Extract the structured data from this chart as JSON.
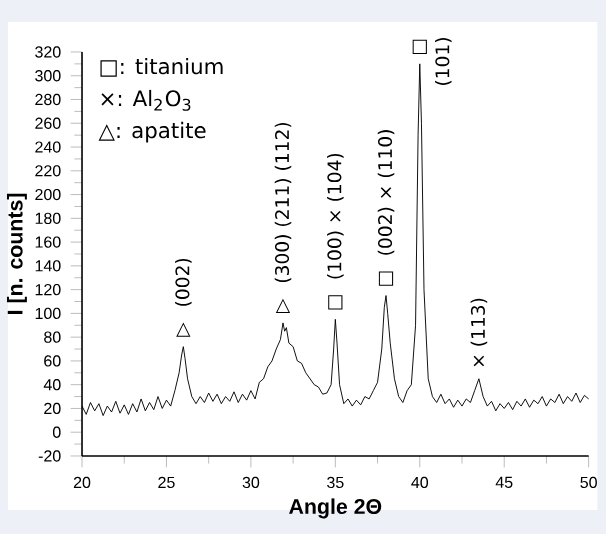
{
  "chart_data": {
    "type": "line",
    "xlabel": "Angle 2Θ",
    "ylabel": "I [n. counts]",
    "x": [
      20,
      20.25,
      20.5,
      20.75,
      21,
      21.25,
      21.5,
      21.75,
      22,
      22.25,
      22.5,
      22.75,
      23,
      23.25,
      23.5,
      23.75,
      24,
      24.25,
      24.5,
      24.75,
      25,
      25.25,
      25.5,
      25.75,
      25.9,
      26,
      26.1,
      26.25,
      26.5,
      26.75,
      27,
      27.25,
      27.5,
      27.75,
      28,
      28.25,
      28.5,
      28.75,
      29,
      29.25,
      29.5,
      29.75,
      30,
      30.25,
      30.5,
      30.75,
      31,
      31.25,
      31.5,
      31.75,
      31.9,
      32,
      32.1,
      32.25,
      32.5,
      32.75,
      33,
      33.25,
      33.5,
      33.75,
      34,
      34.25,
      34.5,
      34.75,
      34.9,
      35,
      35.1,
      35.25,
      35.5,
      35.75,
      36,
      36.25,
      36.5,
      36.75,
      37,
      37.25,
      37.5,
      37.75,
      37.9,
      38,
      38.1,
      38.25,
      38.5,
      38.75,
      39,
      39.25,
      39.5,
      39.75,
      39.9,
      40,
      40.1,
      40.25,
      40.5,
      40.75,
      41,
      41.25,
      41.5,
      41.75,
      42,
      42.25,
      42.5,
      42.75,
      43,
      43.25,
      43.5,
      43.75,
      44,
      44.25,
      44.5,
      44.75,
      45,
      45.25,
      45.5,
      45.75,
      46,
      46.25,
      46.5,
      46.75,
      47,
      47.25,
      47.5,
      47.75,
      48,
      48.25,
      48.5,
      48.75,
      49,
      49.25,
      49.5,
      49.75,
      50
    ],
    "series": [
      {
        "color": "#000000",
        "values": [
          22,
          15,
          25,
          18,
          24,
          14,
          22,
          17,
          26,
          16,
          23,
          15,
          24,
          17,
          28,
          18,
          25,
          19,
          30,
          20,
          27,
          22,
          35,
          50,
          65,
          72,
          62,
          45,
          30,
          24,
          30,
          25,
          33,
          26,
          32,
          24,
          30,
          26,
          34,
          25,
          32,
          27,
          35,
          28,
          42,
          45,
          55,
          60,
          70,
          78,
          92,
          85,
          88,
          75,
          72,
          60,
          58,
          50,
          45,
          40,
          38,
          32,
          33,
          40,
          70,
          95,
          75,
          40,
          24,
          28,
          22,
          27,
          23,
          30,
          28,
          35,
          42,
          70,
          105,
          115,
          100,
          75,
          45,
          30,
          25,
          35,
          40,
          90,
          250,
          310,
          260,
          120,
          45,
          30,
          25,
          32,
          24,
          28,
          21,
          27,
          22,
          28,
          25,
          35,
          45,
          30,
          22,
          26,
          18,
          24,
          20,
          25,
          19,
          26,
          22,
          28,
          21,
          27,
          24,
          30,
          22,
          28,
          25,
          32,
          24,
          30,
          26,
          33,
          25,
          31,
          28
        ]
      }
    ],
    "xlim": [
      20,
      50
    ],
    "ylim": [
      -20,
      320
    ],
    "xticks": [
      20,
      25,
      30,
      35,
      40,
      45,
      50
    ],
    "yticks": [
      -20,
      0,
      20,
      40,
      60,
      80,
      100,
      120,
      140,
      160,
      180,
      200,
      220,
      240,
      260,
      280,
      300,
      320
    ],
    "grid": false,
    "marker": "none",
    "line_style": "solid",
    "annotations": [
      "□: titanium",
      "×: Al$_{2}$O$_{3}$",
      "△: apatite",
      {
        "text": "△",
        "x": 26,
        "y": 72
      },
      {
        "text": "(002)",
        "x": 26,
        "y": 72
      },
      {
        "text": "△",
        "x": 31.9,
        "y": 92
      },
      {
        "text": "(300) (211) (112)",
        "x": 31.9,
        "y": 92
      },
      {
        "text": "□",
        "x": 35,
        "y": 95
      },
      {
        "text": "(100) × (104)",
        "x": 35,
        "y": 95
      },
      {
        "text": "□",
        "x": 38,
        "y": 115
      },
      {
        "text": "(002) × (110)",
        "x": 38,
        "y": 115
      },
      {
        "text": "□",
        "x": 40,
        "y": 310
      },
      {
        "text": "(101)",
        "x": 40,
        "y": 310
      },
      {
        "text": "× (113)",
        "x": 43.5,
        "y": 45
      }
    ]
  }
}
